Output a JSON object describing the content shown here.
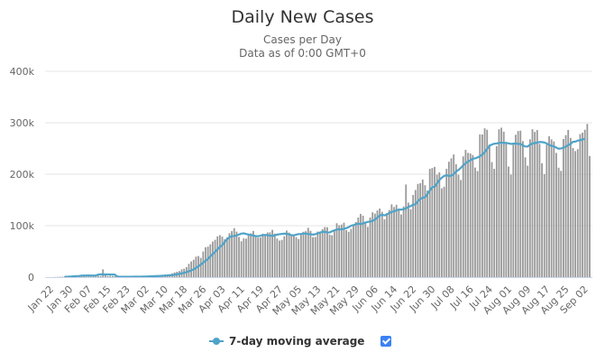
{
  "chart_data": {
    "type": "bar",
    "title": "Daily New Cases",
    "subtitle_lines": [
      "Cases per Day",
      "Data as of 0:00 GMT+0"
    ],
    "xlabel": "",
    "ylabel": "",
    "ylim": [
      0,
      400000
    ],
    "yticks": [
      0,
      100000,
      200000,
      300000,
      400000
    ],
    "ytick_labels": [
      "0",
      "100k",
      "200k",
      "300k",
      "400k"
    ],
    "xtick_labels": [
      "Jan 22",
      "Jan 30",
      "Feb 07",
      "Feb 15",
      "Feb 23",
      "Mar 02",
      "Mar 10",
      "Mar 18",
      "Mar 26",
      "Apr 03",
      "Apr 11",
      "Apr 19",
      "Apr 27",
      "May 05",
      "May 13",
      "May 21",
      "May 29",
      "Jun 06",
      "Jun 14",
      "Jun 22",
      "Jun 30",
      "Jul 08",
      "Jul 16",
      "Jul 24",
      "Aug 01",
      "Aug 09",
      "Aug 17",
      "Aug 25",
      "Sep 02"
    ],
    "xtick_interval_days": 8,
    "start_date": "Jan 22",
    "grid": true,
    "legend_position": "bottom-center",
    "colors": {
      "bars": "#999999",
      "average": "#4fa3c8",
      "grid": "#e6e6e6",
      "axis": "#ccd6eb",
      "checkbox": "#3b82f6"
    },
    "series": [
      {
        "name": "Daily New Cases",
        "type": "bar",
        "values": [
          100,
          100,
          300,
          450,
          700,
          800,
          1700,
          1300,
          1800,
          2100,
          2600,
          2800,
          3200,
          3900,
          3700,
          3200,
          3500,
          2700,
          3000,
          2600,
          2500,
          2000,
          15100,
          6500,
          2100,
          2500,
          2000,
          1800,
          600,
          900,
          1000,
          800,
          500,
          500,
          500,
          600,
          300,
          600,
          900,
          1200,
          1500,
          1800,
          1900,
          2200,
          2500,
          2700,
          3900,
          3900,
          4200,
          4900,
          5900,
          7300,
          9300,
          10500,
          11900,
          15200,
          16300,
          19400,
          25800,
          30400,
          33800,
          39800,
          41100,
          37400,
          49800,
          58000,
          59300,
          63800,
          69100,
          72600,
          79300,
          81700,
          78700,
          73500,
          77300,
          85400,
          89400,
          95100,
          88400,
          78000,
          69700,
          75300,
          74900,
          82800,
          85100,
          89700,
          80400,
          76800,
          77000,
          84500,
          81600,
          86900,
          87100,
          91900,
          84800,
          75000,
          71000,
          72500,
          79500,
          90600,
          86600,
          82000,
          80700,
          77800,
          74200,
          82500,
          88100,
          89300,
          95900,
          90000,
          77800,
          78000,
          88500,
          87700,
          93400,
          97400,
          97000,
          82700,
          81500,
          90500,
          104800,
          100900,
          102200,
          105800,
          91500,
          88100,
          93800,
          101600,
          107000,
          115800,
          123000,
          119400,
          104500,
          97600,
          116000,
          126000,
          123400,
          129600,
          133300,
          127000,
          112600,
          124400,
          130500,
          141500,
          136300,
          140600,
          129900,
          121800,
          137300,
          180000,
          144700,
          132000,
          159600,
          169300,
          181200,
          182600,
          189700,
          178600,
          168200,
          210500,
          212100,
          214300,
          199100,
          203700,
          172600,
          175700,
          210300,
          224200,
          230900,
          238400,
          219600,
          199000,
          188800,
          234700,
          247400,
          241500,
          240500,
          237400,
          213000,
          206200,
          277500,
          277300,
          289200,
          286500,
          257800,
          223700,
          210500,
          254700,
          287400,
          290500,
          282700,
          262600,
          214900,
          199300,
          258600,
          276700,
          284000,
          284700,
          264400,
          232800,
          216500,
          267800,
          287500,
          282200,
          286000,
          259000,
          221400,
          200200,
          257600,
          273800,
          267700,
          263700,
          241400,
          212700,
          206500,
          268500,
          276000,
          286200,
          270600,
          251000,
          245000,
          248800,
          278100,
          280800,
          286500,
          297800,
          235400
        ]
      },
      {
        "name": "7-day moving average",
        "type": "line",
        "start_index": 6,
        "values": [
          600,
          790,
          1040,
          1420,
          1730,
          2060,
          2310,
          2830,
          3030,
          3180,
          3230,
          3190,
          3150,
          3030,
          4920,
          5500,
          5210,
          5210,
          5130,
          5120,
          5060,
          4870,
          1070,
          690,
          730,
          680,
          690,
          750,
          780,
          820,
          860,
          920,
          990,
          1060,
          1170,
          1310,
          1520,
          1710,
          1930,
          2170,
          2400,
          2730,
          3030,
          3310,
          3660,
          4050,
          4690,
          5450,
          6350,
          7300,
          8440,
          9770,
          11340,
          13080,
          15050,
          18010,
          21100,
          24310,
          28110,
          31960,
          35220,
          40240,
          44950,
          49210,
          54080,
          58730,
          62080,
          68220,
          73760,
          77510,
          79720,
          79900,
          80880,
          82830,
          84550,
          85120,
          83950,
          82800,
          81830,
          80780,
          79850,
          79610,
          80410,
          81710,
          82030,
          81650,
          80640,
          80110,
          81130,
          82650,
          83430,
          84000,
          84590,
          84130,
          83150,
          81700,
          81180,
          82500,
          83630,
          83840,
          84780,
          84510,
          83890,
          83450,
          82630,
          83290,
          85280,
          86740,
          88130,
          88280,
          86660,
          86940,
          88990,
          90930,
          92530,
          93100,
          92850,
          93880,
          95260,
          97240,
          99920,
          101160,
          102610,
          104180,
          102930,
          104330,
          106110,
          107330,
          108000,
          109330,
          111700,
          115800,
          119900,
          121130,
          119980,
          122030,
          124570,
          126730,
          127900,
          129900,
          131370,
          131200,
          131860,
          133660,
          136320,
          138200,
          140800,
          141620,
          147600,
          152000,
          154230,
          155200,
          161600,
          168300,
          174800,
          175520,
          182120,
          188940,
          193190,
          196650,
          198200,
          196700,
          197200,
          199900,
          205300,
          208300,
          212400,
          217300,
          221200,
          224700,
          227100,
          230300,
          230800,
          232700,
          234900,
          238200,
          242900,
          249170,
          255240,
          257700,
          259300,
          259700,
          260900,
          261500,
          260700,
          260800,
          260000,
          258900,
          259400,
          259700,
          258900,
          259000,
          255900,
          254000,
          253800,
          257500,
          259700,
          260500,
          261200,
          262700,
          262500,
          261600,
          259800,
          256800,
          255200,
          254200,
          251700,
          249600,
          250100,
          251500,
          253500,
          256500,
          259000,
          262900,
          263400,
          265300,
          266100,
          267700,
          268700
        ]
      }
    ]
  },
  "legend": {
    "items": [
      {
        "label": "7-day moving average",
        "checked": true
      }
    ]
  }
}
